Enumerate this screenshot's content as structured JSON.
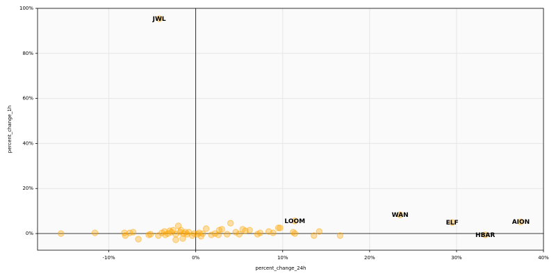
{
  "chart_data": {
    "type": "scatter",
    "x_label": "percent_change_24h",
    "y_label": "percent_change_1h",
    "color": "#ffa500",
    "grid": true,
    "xlim": [
      -18.2,
      40
    ],
    "ylim": [
      -7.4,
      100
    ],
    "xticks": [
      {
        "value": -10,
        "label": "-10%"
      },
      {
        "value": 0,
        "label": "0%"
      },
      {
        "value": 10,
        "label": "10%"
      },
      {
        "value": 20,
        "label": "20%"
      },
      {
        "value": 30,
        "label": "30%"
      },
      {
        "value": 40,
        "label": "40%"
      }
    ],
    "yticks": [
      {
        "value": 0,
        "label": "0%"
      },
      {
        "value": 20,
        "label": "20%"
      },
      {
        "value": 40,
        "label": "40%"
      },
      {
        "value": 60,
        "label": "60%"
      },
      {
        "value": 80,
        "label": "80%"
      },
      {
        "value": 100,
        "label": "100%"
      }
    ],
    "x": [
      -15.5,
      -11.6,
      -8.2,
      -8.1,
      -7.6,
      -7.2,
      -6.6,
      -5.4,
      -5.2,
      -4.3,
      -3.9,
      -3.6,
      -3.5,
      -3.2,
      -3.0,
      -2.8,
      -2.6,
      -2.3,
      -2.3,
      -2.0,
      -1.8,
      -1.7,
      -1.5,
      -1.4,
      -1.2,
      -1.0,
      -0.8,
      -0.4,
      -0.2,
      0.2,
      0.4,
      0.6,
      0.8,
      1.2,
      1.8,
      2.2,
      2.6,
      2.7,
      3.0,
      3.6,
      4.0,
      4.6,
      5.0,
      5.4,
      5.7,
      6.2,
      7.1,
      7.4,
      8.4,
      8.9,
      9.5,
      9.7,
      11.2,
      11.4,
      13.6,
      14.2,
      16.6,
      -4.2,
      11.4,
      23.5,
      29.5,
      33.3,
      37.4
    ],
    "y": [
      0,
      0.3,
      0.3,
      -0.9,
      0.3,
      0.6,
      -2.5,
      -0.6,
      -0.3,
      -0.9,
      0.3,
      0.9,
      -0.6,
      0,
      1.2,
      0.6,
      1.5,
      -2.8,
      -0.3,
      3.4,
      0.6,
      1.5,
      -2.2,
      0,
      0.6,
      -0.3,
      0.6,
      -0.9,
      0,
      -0.3,
      0.3,
      -1.2,
      0,
      2.2,
      -0.6,
      0,
      -0.6,
      1.5,
      1.9,
      -0.3,
      4.6,
      0.6,
      -0.3,
      1.9,
      1.2,
      1.5,
      -0.3,
      0.3,
      0.9,
      0.3,
      2.5,
      2.5,
      0.6,
      0,
      -0.9,
      0.9,
      -0.9,
      95.4,
      5.6,
      8.3,
      4.9,
      -0.6,
      5.2
    ],
    "point_labels": [
      null,
      null,
      null,
      null,
      null,
      null,
      null,
      null,
      null,
      null,
      null,
      null,
      null,
      null,
      null,
      null,
      null,
      null,
      null,
      null,
      null,
      null,
      null,
      null,
      null,
      null,
      null,
      null,
      null,
      null,
      null,
      null,
      null,
      null,
      null,
      null,
      null,
      null,
      null,
      null,
      null,
      null,
      null,
      null,
      null,
      null,
      null,
      null,
      null,
      null,
      null,
      null,
      null,
      null,
      null,
      null,
      null,
      "JWL",
      "LOOM",
      "WAN",
      "ELF",
      "HBAR",
      "AION"
    ]
  }
}
